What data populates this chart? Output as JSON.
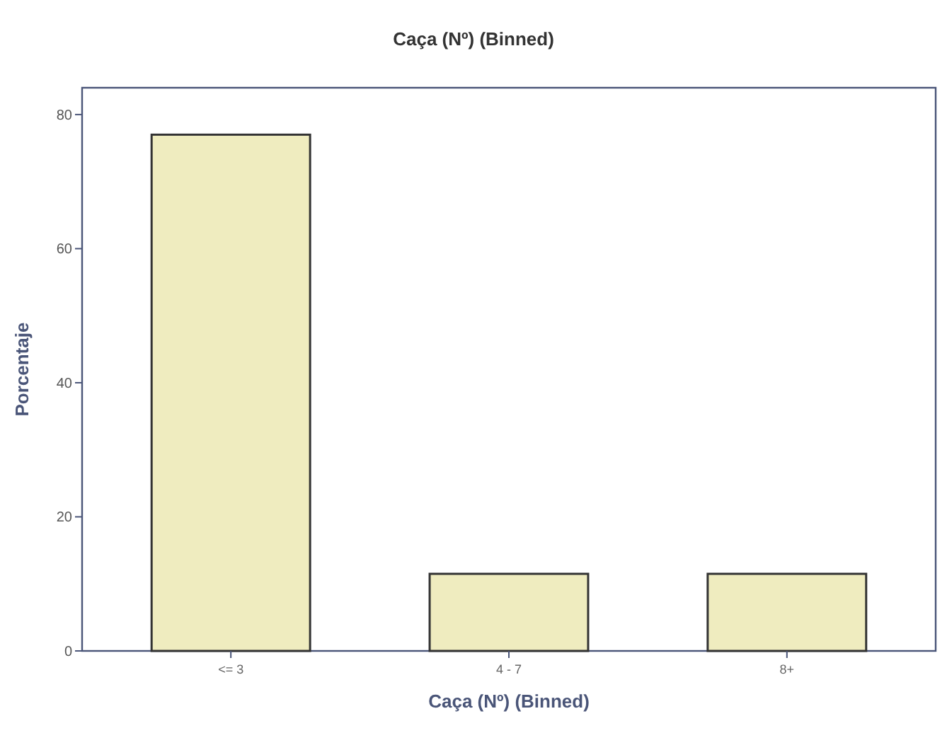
{
  "chart_data": {
    "type": "bar",
    "title": "Caça (Nº) (Binned)",
    "xlabel": "Caça (Nº) (Binned)",
    "ylabel": "Porcentaje",
    "categories": [
      "<= 3",
      "4 - 7",
      "8+"
    ],
    "values": [
      77,
      11.5,
      11.5
    ],
    "color": "#efecbf",
    "ylim": [
      0,
      84
    ],
    "yticks": [
      0,
      20,
      40,
      60,
      80
    ],
    "grid": false
  }
}
